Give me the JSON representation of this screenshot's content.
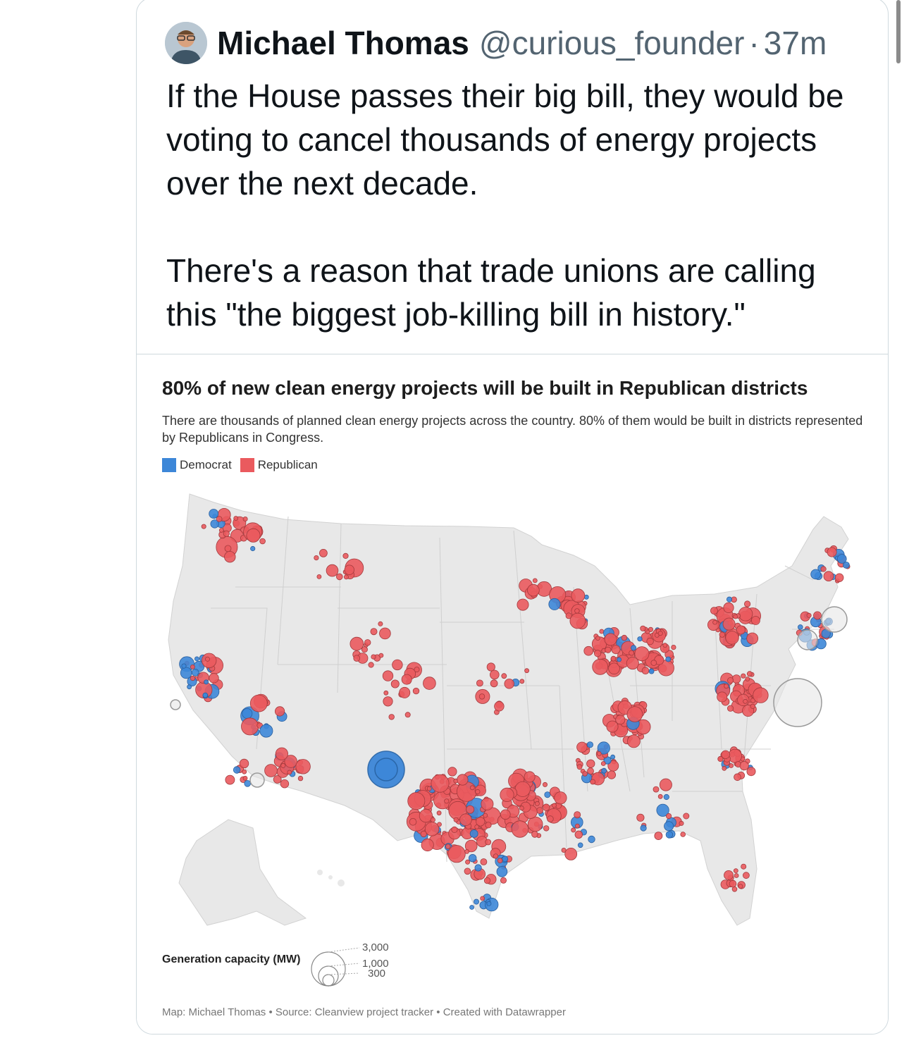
{
  "tweet": {
    "author_name": "Michael Thomas",
    "author_handle": "@curious_founder",
    "separator": "·",
    "time": "37m",
    "paragraphs": [
      "If the House passes their big bill, they would be voting to cancel thousands of energy projects over the next decade.",
      "There's a reason that trade unions are calling this \"the biggest job-killing bill in history.\""
    ]
  },
  "map": {
    "title": "80% of new clean energy projects will be built in Republican districts",
    "description": "There are thousands of planned clean energy projects across the country. 80% of them would be built in districts represented by Republicans in Congress.",
    "legend": [
      {
        "label": "Democrat",
        "color": "#3d87d8"
      },
      {
        "label": "Republican",
        "color": "#ea5a5e"
      }
    ],
    "size_legend": {
      "label": "Generation capacity (MW)",
      "values": [
        "3,000",
        "1,000",
        "300"
      ]
    },
    "credits": "Map: Michael Thomas • Source: Cleanview project tracker • Created with Datawrapper"
  },
  "colors": {
    "democrat": "#3d87d8",
    "republican": "#ea5a5e",
    "land": "#e8e8e8",
    "border": "#cfd9de"
  }
}
